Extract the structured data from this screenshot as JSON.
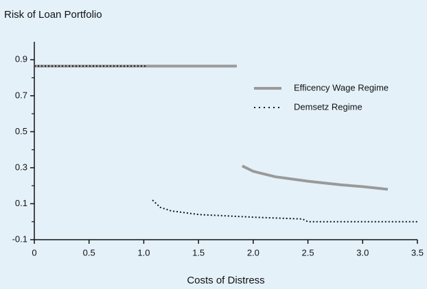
{
  "chart_data": {
    "type": "line",
    "title": "Risk of Loan Portfolio",
    "x_label": "Costs of Distress",
    "xlim": [
      0,
      3.5
    ],
    "xticks": [
      0,
      0.5,
      {
        "value": 1.0,
        "label": "1.0"
      },
      1.5,
      {
        "value": 2.0,
        "label": "2.0"
      },
      2.5,
      {
        "value": 3.0,
        "label": "3.0"
      },
      3.5
    ],
    "ylim": [
      -0.1,
      1.0
    ],
    "yticks": [
      -0.1,
      0.1,
      0.3,
      0.5,
      0.7,
      0.9
    ],
    "series": [
      {
        "name": "Efficency Wage Regime",
        "color": "#9a9a9a",
        "style": "solid",
        "x": [
          0,
          1.85,
          1.85,
          1.9,
          2.0,
          2.2,
          2.5,
          2.8,
          3.0,
          3.23
        ],
        "values": [
          0.865,
          0.865,
          null,
          0.31,
          0.28,
          0.25,
          0.225,
          0.205,
          0.195,
          0.18
        ]
      },
      {
        "name": "Demsetz Regime",
        "color": "#111111",
        "style": "dotted",
        "x": [
          0,
          1.03,
          1.08,
          1.08,
          1.15,
          1.25,
          1.5,
          2.0,
          2.45,
          2.5,
          3.5
        ],
        "values": [
          0.865,
          0.865,
          null,
          0.12,
          0.08,
          0.06,
          0.04,
          0.025,
          0.015,
          0.0,
          0.0
        ]
      }
    ]
  }
}
